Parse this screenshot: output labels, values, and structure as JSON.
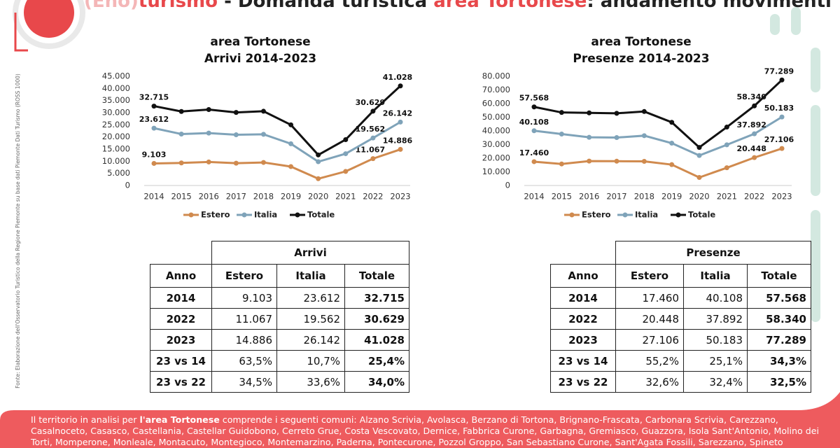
{
  "header": {
    "title_parts": [
      "(Eno)",
      "turismo",
      " - Domanda turistica ",
      "area Tortonese",
      ": andamento movimenti"
    ]
  },
  "source_note": "Fonte: Elaborazione dell'Osservatorio Turistico della Regione Piemonte su base dati Piemonte Dati Turismo (ROSS 1000)",
  "chart_data": [
    {
      "type": "line",
      "title": "area Tortonese",
      "subtitle": "Arrivi 2014-2023",
      "categories": [
        "2014",
        "2015",
        "2016",
        "2017",
        "2018",
        "2019",
        "2020",
        "2021",
        "2022",
        "2023"
      ],
      "ylim": [
        0,
        45000
      ],
      "yticks": [
        0,
        {
          "value": 5000,
          "label": "5.000"
        },
        {
          "value": 10000,
          "label": "10.000"
        },
        {
          "value": 15000,
          "label": "15.000"
        },
        {
          "value": 20000,
          "label": "20.000"
        },
        {
          "value": 25000,
          "label": "25.000"
        },
        {
          "value": 30000,
          "label": "30.000"
        },
        {
          "value": 35000,
          "label": "35.000"
        },
        {
          "value": 40000,
          "label": "40.000"
        },
        {
          "value": 45000,
          "label": "45.000"
        }
      ],
      "grid": false,
      "legend": "bottom",
      "series": [
        {
          "name": "Estero",
          "color": "#d08a4e",
          "values": [
            9103,
            9300,
            9700,
            9200,
            9500,
            7800,
            2800,
            5800,
            11067,
            14886
          ],
          "value_labels": [
            "9.103",
            null,
            null,
            null,
            null,
            null,
            null,
            null,
            "11.067",
            "14.886"
          ]
        },
        {
          "name": "Italia",
          "color": "#7fa3b9",
          "values": [
            23612,
            21200,
            21600,
            20900,
            21100,
            17200,
            9800,
            13100,
            19562,
            26142
          ],
          "value_labels": [
            "23.612",
            null,
            null,
            null,
            null,
            null,
            null,
            null,
            "19.562",
            "26.142"
          ]
        },
        {
          "name": "Totale",
          "color": "#111111",
          "values": [
            32715,
            30500,
            31300,
            30100,
            30600,
            25000,
            12600,
            18900,
            30629,
            41028
          ],
          "value_labels": [
            "32.715",
            null,
            null,
            null,
            null,
            null,
            null,
            null,
            "30.629",
            "41.028"
          ]
        }
      ]
    },
    {
      "type": "line",
      "title": "area Tortonese",
      "subtitle": "Presenze 2014-2023",
      "categories": [
        "2014",
        "2015",
        "2016",
        "2017",
        "2018",
        "2019",
        "2020",
        "2021",
        "2022",
        "2023"
      ],
      "ylim": [
        0,
        80000
      ],
      "yticks": [
        0,
        {
          "value": 10000,
          "label": "10.000"
        },
        {
          "value": 20000,
          "label": "20.000"
        },
        {
          "value": 30000,
          "label": "30.000"
        },
        {
          "value": 40000,
          "label": "40.000"
        },
        {
          "value": 50000,
          "label": "50.000"
        },
        {
          "value": 60000,
          "label": "60.000"
        },
        {
          "value": 70000,
          "label": "70.000"
        },
        {
          "value": 80000,
          "label": "80.000"
        }
      ],
      "grid": false,
      "legend": "bottom",
      "series": [
        {
          "name": "Estero",
          "color": "#d08a4e",
          "values": [
            17460,
            15800,
            17900,
            17800,
            17700,
            15300,
            5900,
            13000,
            20448,
            27106
          ],
          "value_labels": [
            "17.460",
            null,
            null,
            null,
            null,
            null,
            null,
            null,
            "20.448",
            "27.106"
          ]
        },
        {
          "name": "Italia",
          "color": "#7fa3b9",
          "values": [
            40108,
            37700,
            35300,
            35100,
            36500,
            31000,
            22000,
            29800,
            37892,
            50183
          ],
          "value_labels": [
            "40.108",
            null,
            null,
            null,
            null,
            null,
            null,
            null,
            "37.892",
            "50.183"
          ]
        },
        {
          "name": "Totale",
          "color": "#111111",
          "values": [
            57568,
            53500,
            53200,
            52900,
            54200,
            46300,
            27900,
            42800,
            58340,
            77289
          ],
          "value_labels": [
            "57.568",
            null,
            null,
            null,
            null,
            null,
            null,
            null,
            "58.340",
            "77.289"
          ]
        }
      ]
    }
  ],
  "tables": [
    {
      "title": "Arrivi",
      "columns": [
        "Anno",
        "Estero",
        "Italia",
        "Totale"
      ],
      "rows": [
        [
          "2014",
          "9.103",
          "23.612",
          "32.715"
        ],
        [
          "2022",
          "11.067",
          "19.562",
          "30.629"
        ],
        [
          "2023",
          "14.886",
          "26.142",
          "41.028"
        ],
        [
          "23 vs 14",
          "63,5%",
          "10,7%",
          "25,4%"
        ],
        [
          "23 vs 22",
          "34,5%",
          "33,6%",
          "34,0%"
        ]
      ]
    },
    {
      "title": "Presenze",
      "columns": [
        "Anno",
        "Estero",
        "Italia",
        "Totale"
      ],
      "rows": [
        [
          "2014",
          "17.460",
          "40.108",
          "57.568"
        ],
        [
          "2022",
          "20.448",
          "37.892",
          "58.340"
        ],
        [
          "2023",
          "27.106",
          "50.183",
          "77.289"
        ],
        [
          "23 vs 14",
          "55,2%",
          "25,1%",
          "34,3%"
        ],
        [
          "23 vs 22",
          "32,6%",
          "32,4%",
          "32,5%"
        ]
      ]
    }
  ],
  "footer": {
    "intro": "Il territorio in analisi per ",
    "highlight": "l'area Tortonese",
    "text": " comprende i seguenti comuni: Alzano Scrivia, Avolasca, Berzano di Tortona, Brignano-Frascata, Carbonara Scrivia, Carezzano, Casalnoceto, Casasco, Castellania, Castellar Guidobono, Cerreto Grue, Costa Vescovato, Dernice, Fabbrica Curone, Garbagna, Gremiasco, Guazzora, Isola Sant'Antonio, Molino dei Torti, Momperone, Monleale, Montacuto, Montegioco, Montemarzino, Paderna, Pontecurone, Pozzol Groppo, San Sebastiano Curone, Sant'Agata Fossili, Sarezzano, Spineto"
  }
}
